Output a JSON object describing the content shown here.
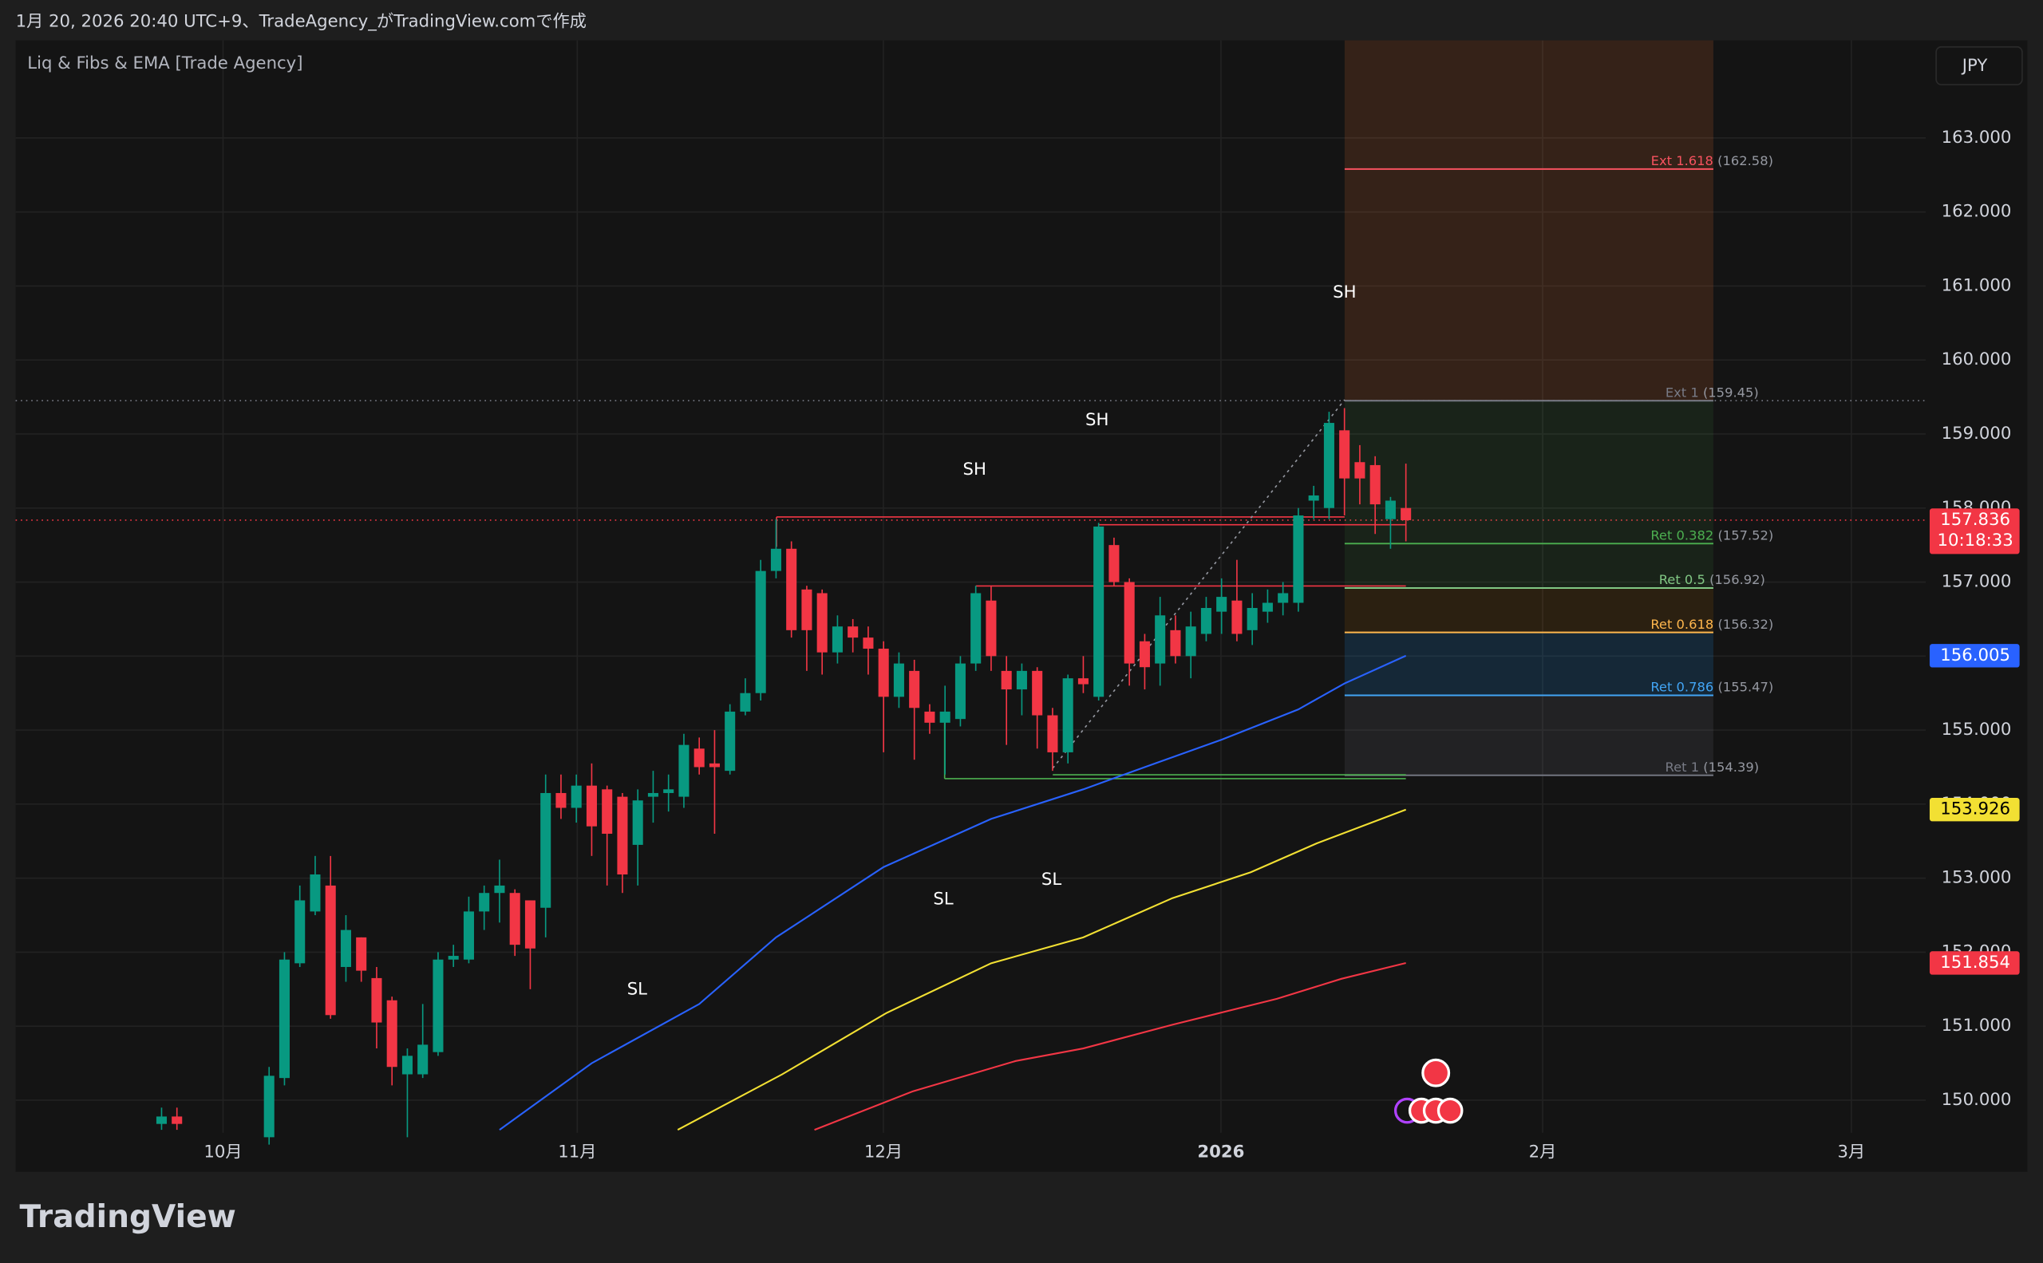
{
  "header": {
    "caption": "1月 20, 2026 20:40 UTC+9、TradeAgency_がTradingView.comで作成"
  },
  "footer": {
    "logo": "TradingView"
  },
  "chart_data": {
    "type": "candlestick",
    "title": "Liq & Fibs & EMA [Trade Agency]",
    "currency": "JPY",
    "up_color": "#089981",
    "down_color": "#f23645",
    "candles": {
      "open": [
        149.68,
        149.78,
        null,
        null,
        null,
        null,
        null,
        149.5,
        150.3,
        151.85,
        152.55,
        152.9,
        151.8,
        152.2,
        151.65,
        151.35,
        150.35,
        150.35,
        150.65,
        151.9,
        151.9,
        152.55,
        152.8,
        152.8,
        152.7,
        152.6,
        154.15,
        153.95,
        154.25,
        154.2,
        154.1,
        153.45,
        154.1,
        154.15,
        154.1,
        154.75,
        154.55,
        154.45,
        155.25,
        155.5,
        157.15,
        157.45,
        156.9,
        156.85,
        156.05,
        156.4,
        156.25,
        156.1,
        155.45,
        155.8,
        155.25,
        155.1,
        155.15,
        155.9,
        156.75,
        155.8,
        155.55,
        155.8,
        155.2,
        154.7,
        155.7,
        155.45,
        157.5,
        157.0,
        156.2,
        155.9,
        156.35,
        156.0,
        156.3,
        156.6,
        156.75,
        156.35,
        156.6,
        156.72,
        156.72,
        158.1,
        158.0,
        159.05,
        158.62,
        158.58,
        157.85,
        158.0
      ],
      "high": [
        149.9,
        149.9,
        null,
        null,
        null,
        null,
        null,
        150.45,
        152.0,
        152.9,
        153.3,
        153.3,
        152.5,
        152.2,
        151.8,
        151.4,
        150.7,
        151.3,
        152.0,
        152.1,
        152.75,
        152.9,
        153.25,
        152.85,
        152.7,
        154.4,
        154.4,
        154.4,
        154.55,
        154.25,
        154.15,
        154.2,
        154.45,
        154.4,
        154.95,
        154.9,
        155.0,
        155.35,
        155.7,
        157.3,
        157.85,
        157.55,
        156.95,
        156.9,
        156.55,
        156.5,
        156.4,
        156.2,
        156.05,
        155.95,
        155.35,
        155.6,
        156.0,
        156.95,
        156.95,
        156.0,
        155.9,
        155.85,
        155.3,
        155.75,
        156.0,
        157.8,
        157.6,
        157.05,
        156.3,
        156.8,
        156.55,
        156.6,
        156.8,
        157.05,
        157.3,
        156.85,
        156.9,
        157.0,
        158.0,
        158.3,
        159.3,
        159.35,
        158.85,
        158.7,
        158.15,
        158.6
      ],
      "low": [
        149.6,
        149.6,
        null,
        null,
        null,
        null,
        null,
        149.4,
        150.2,
        151.8,
        152.5,
        151.1,
        151.6,
        151.6,
        150.7,
        150.2,
        149.5,
        150.3,
        150.6,
        151.8,
        151.85,
        152.3,
        152.4,
        151.95,
        151.5,
        152.2,
        153.8,
        153.75,
        153.3,
        152.9,
        152.8,
        152.9,
        153.75,
        153.9,
        153.95,
        154.4,
        153.6,
        154.4,
        155.2,
        155.4,
        157.05,
        156.25,
        155.8,
        155.75,
        155.9,
        156.05,
        155.75,
        154.7,
        155.3,
        154.6,
        154.95,
        154.4,
        155.05,
        155.8,
        155.8,
        154.8,
        155.2,
        154.75,
        154.45,
        154.55,
        155.5,
        155.4,
        156.95,
        155.6,
        155.55,
        155.6,
        155.9,
        155.7,
        156.2,
        156.3,
        156.2,
        156.15,
        156.45,
        156.55,
        156.6,
        157.85,
        157.85,
        157.9,
        158.05,
        157.65,
        157.45,
        157.55
      ],
      "close": [
        149.78,
        149.68,
        null,
        null,
        null,
        null,
        null,
        150.33,
        151.9,
        152.7,
        153.05,
        151.15,
        152.3,
        151.75,
        151.05,
        150.45,
        150.6,
        150.75,
        151.9,
        151.95,
        152.55,
        152.8,
        152.9,
        152.1,
        152.05,
        154.15,
        153.95,
        154.25,
        153.7,
        153.6,
        153.05,
        154.05,
        154.15,
        154.2,
        154.8,
        154.5,
        154.5,
        155.25,
        155.5,
        157.15,
        157.45,
        156.35,
        156.35,
        156.05,
        156.4,
        156.25,
        156.1,
        155.45,
        155.9,
        155.3,
        155.1,
        155.25,
        155.9,
        156.85,
        156.0,
        155.55,
        155.8,
        155.2,
        154.7,
        155.7,
        155.62,
        157.75,
        157.0,
        155.9,
        155.85,
        156.55,
        156.0,
        156.4,
        156.65,
        156.8,
        156.3,
        156.65,
        156.72,
        156.85,
        157.9,
        158.17,
        159.15,
        158.4,
        158.4,
        158.05,
        158.1,
        157.836
      ]
    },
    "series": [
      {
        "color": "#2962ff",
        "x": [
          22,
          28,
          35,
          40,
          47,
          54,
          60,
          64,
          69,
          74,
          77,
          81
        ],
        "values": [
          149.6,
          150.5,
          151.3,
          152.2,
          153.15,
          153.8,
          154.2,
          154.5,
          154.87,
          155.28,
          155.63,
          156.005
        ]
      },
      {
        "color": "#f2e033",
        "x": [
          33.6,
          40.4,
          47.2,
          54,
          60,
          65.8,
          70.9,
          75.2,
          81
        ],
        "values": [
          149.6,
          150.35,
          151.18,
          151.85,
          152.2,
          152.73,
          153.08,
          153.47,
          153.926
        ]
      },
      {
        "color": "#f23645",
        "x": [
          42.5,
          48.9,
          55.6,
          60,
          65.8,
          72.6,
          76.8,
          81
        ],
        "values": [
          149.6,
          150.12,
          150.53,
          150.7,
          151.02,
          151.37,
          151.64,
          151.854
        ]
      }
    ],
    "fib_levels": [
      {
        "name": "Ext 1.618",
        "value": 162.58,
        "label": "(162.58)",
        "color": "#f7525f"
      },
      {
        "name": "Ext 1",
        "value": 159.45,
        "label": "(159.45)",
        "color": "#787b86"
      },
      {
        "name": "Ret 0.382",
        "value": 157.52,
        "label": "(157.52)",
        "color": "#4caf50"
      },
      {
        "name": "Ret 0.5",
        "value": 156.92,
        "label": "(156.92)",
        "color": "#81c784"
      },
      {
        "name": "Ret 0.618",
        "value": 156.32,
        "label": "(156.32)",
        "color": "#ffb74d"
      },
      {
        "name": "Ret 0.786",
        "value": 155.47,
        "label": "(155.47)",
        "color": "#42a5f5"
      },
      {
        "name": "Ret 1",
        "value": 154.39,
        "label": "(154.39)",
        "color": "#787b86"
      }
    ],
    "annotations": [
      "SH",
      "SH",
      "SH",
      "SL",
      "SL",
      "SL"
    ],
    "price_tags": [
      {
        "value": 157.836,
        "countdown": "10:18:33",
        "color": "#f23645"
      },
      {
        "value": 156.005,
        "color": "#2962ff"
      },
      {
        "value": 153.926,
        "color": "#f2e033"
      },
      {
        "value": 151.854,
        "color": "#f23645"
      }
    ],
    "xlim": [
      -9.5,
      114.84
    ],
    "xticks": [
      {
        "value": 4,
        "label": "10月"
      },
      {
        "value": 27.06,
        "label": "11月"
      },
      {
        "value": 46.99,
        "label": "12月"
      },
      {
        "value": 68.96,
        "label": "2026"
      },
      {
        "value": 89.9,
        "label": "2月"
      },
      {
        "value": 110,
        "label": "3月"
      }
    ],
    "ylim": [
      149.56,
      164.318
    ],
    "yticks": [
      {
        "value": 150,
        "label": "150.000"
      },
      {
        "value": 151,
        "label": "151.000"
      },
      {
        "value": 152,
        "label": "152.000"
      },
      {
        "value": 153,
        "label": "153.000"
      },
      {
        "value": 154,
        "label": "154.000"
      },
      {
        "value": 155,
        "label": "155.000"
      },
      {
        "value": 156,
        "label": "156.000"
      },
      {
        "value": 157,
        "label": "157.000"
      },
      {
        "value": 158,
        "label": "158.000"
      },
      {
        "value": 159,
        "label": "159.000"
      },
      {
        "value": 160,
        "label": "160.000"
      },
      {
        "value": 161,
        "label": "161.000"
      },
      {
        "value": 162,
        "label": "162.000"
      },
      {
        "value": 163,
        "label": "163.000"
      }
    ],
    "grid": true
  }
}
